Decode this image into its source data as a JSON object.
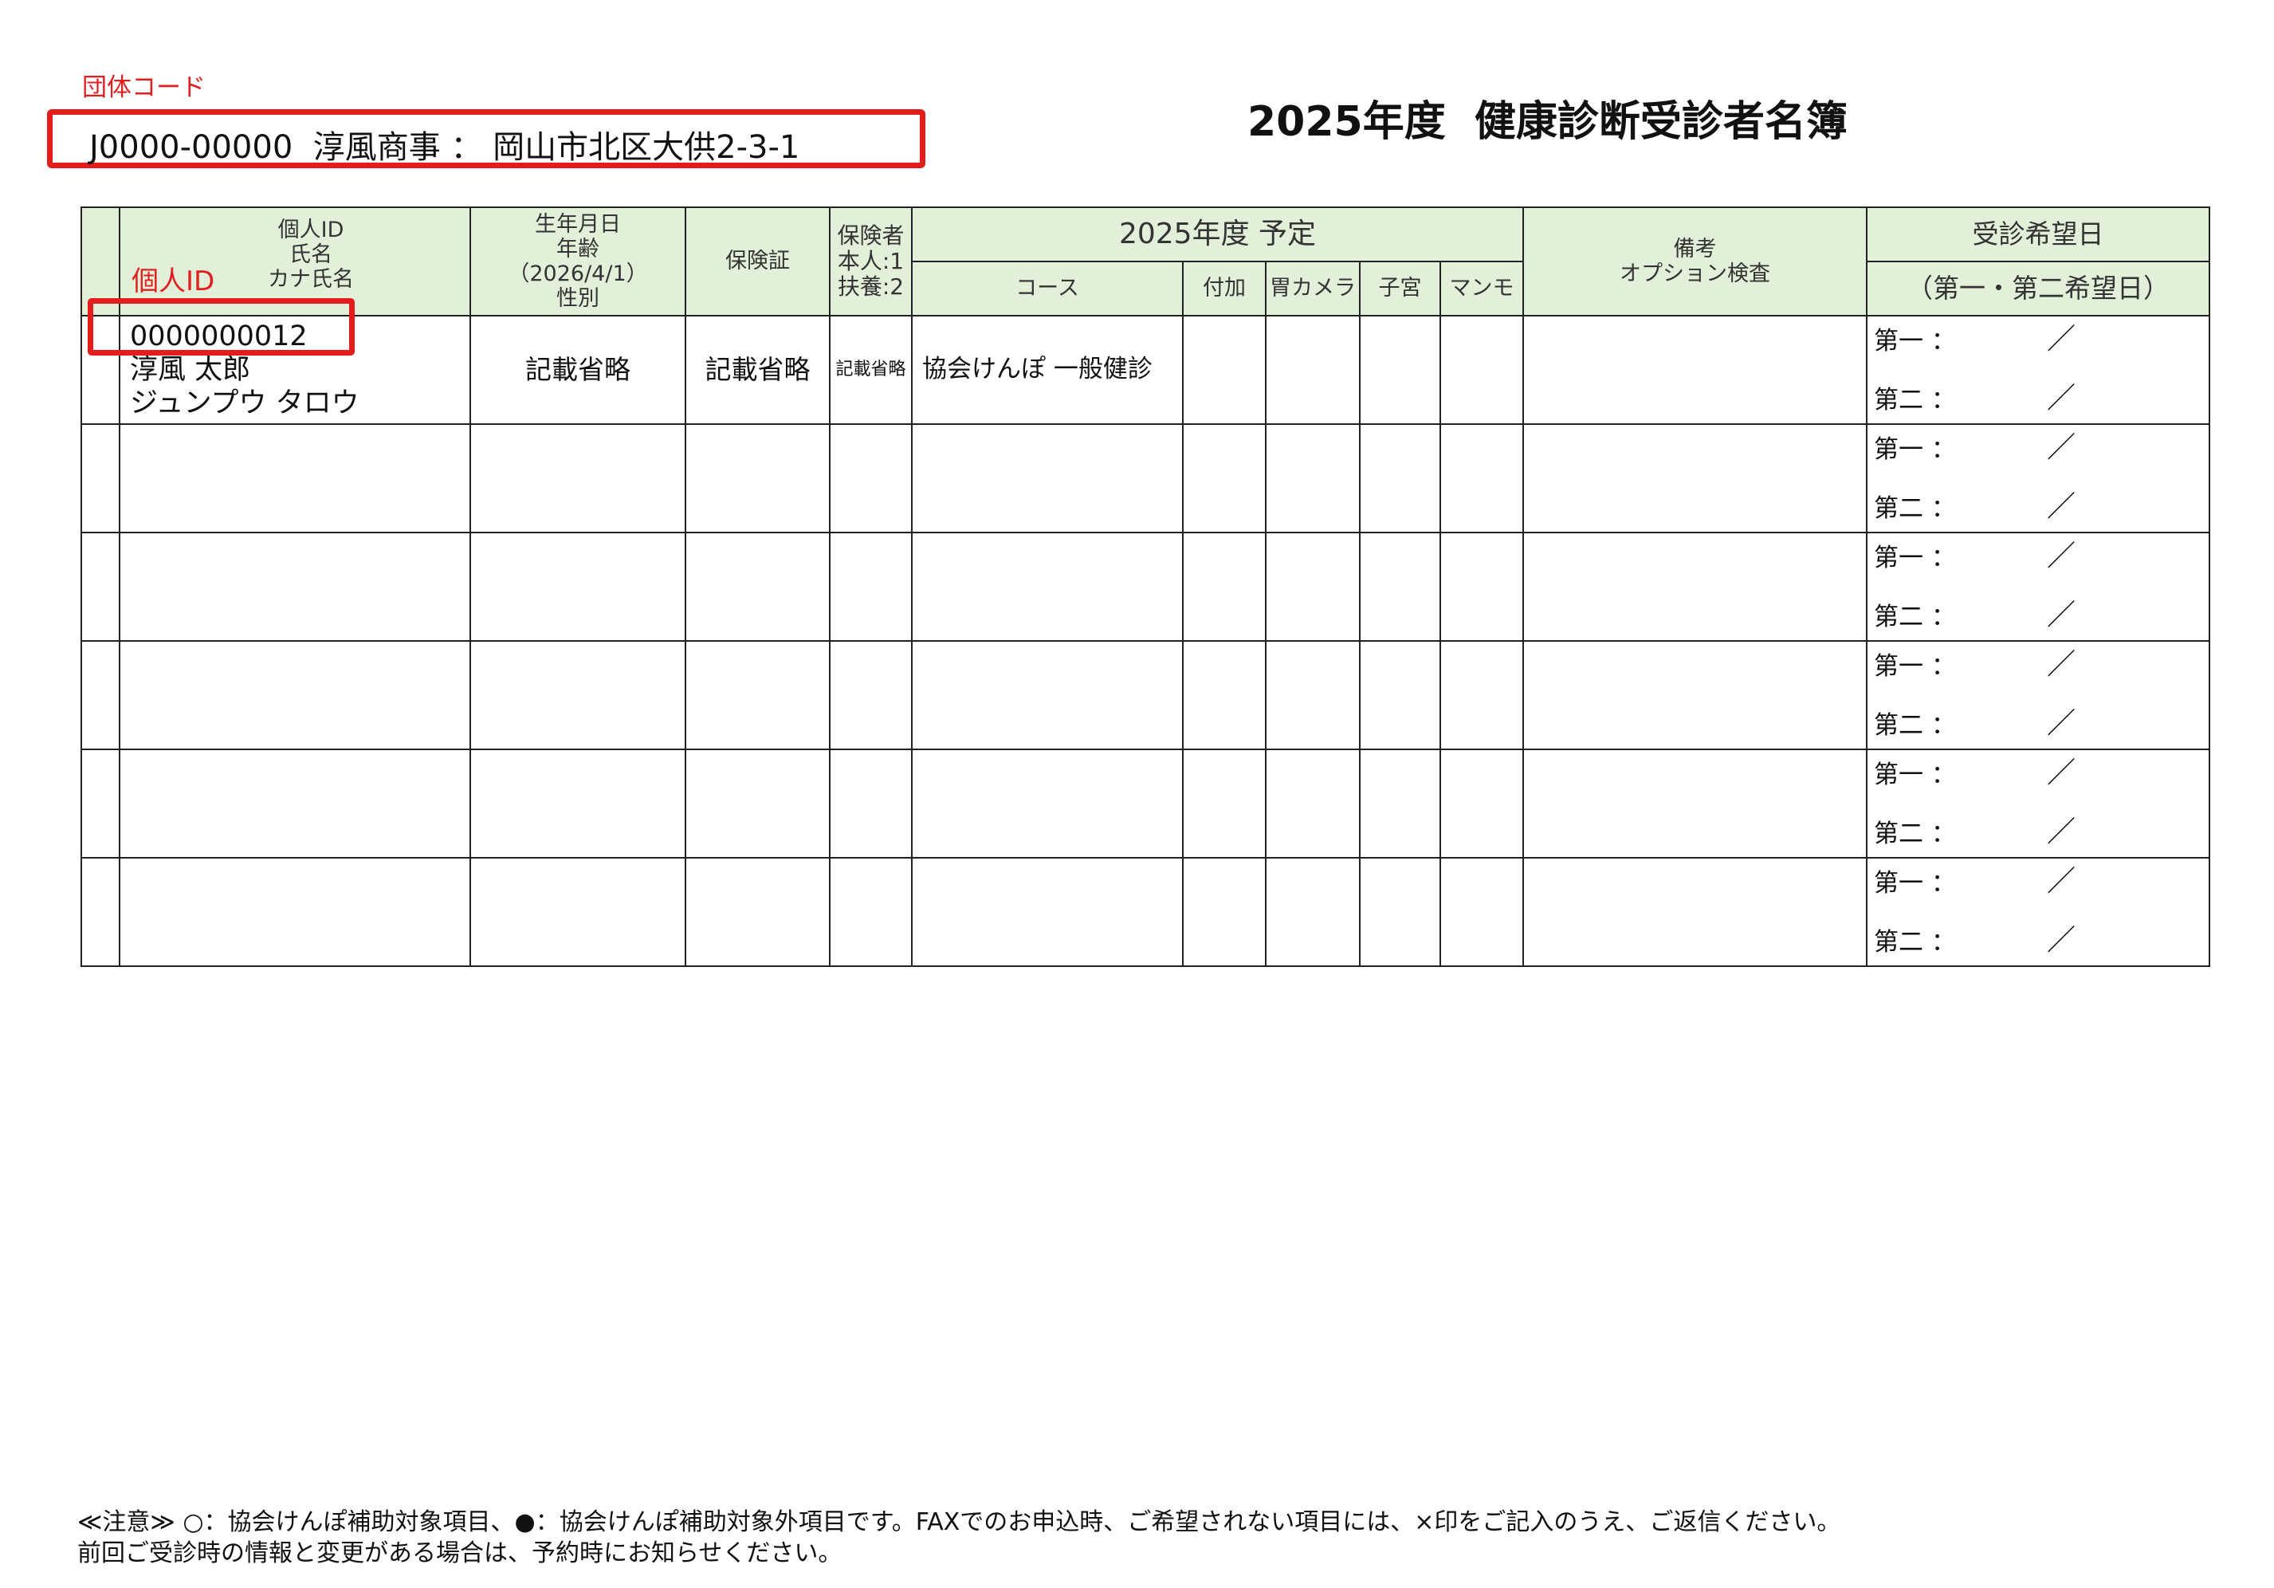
{
  "header": {
    "group_code_label": "団体コード",
    "group_info": "J0000-00000  淳風商事 ： 岡山市北区大供2-3-1",
    "title": "2025年度  健康診断受診者名簿"
  },
  "table": {
    "headers": {
      "person": [
        "個人ID",
        "氏名",
        "カナ氏名"
      ],
      "person_id_highlight": "個人ID",
      "birth": [
        "生年月日",
        "年齢",
        "（2026/4/1）",
        "性別"
      ],
      "insurance_card": "保険証",
      "insured": [
        "保険者",
        "本人:1",
        "扶養:2"
      ],
      "plan_group": "2025年度 予定",
      "course": "コース",
      "additional": "付加",
      "gastro": "胃カメラ",
      "uterus": "子宮",
      "mammo": "マンモ",
      "remarks": [
        "備考",
        "オプション検査"
      ],
      "preferred": "受診希望日",
      "preferred_sub": "（第一・第二希望日）"
    },
    "date_labels": {
      "first": "第一 ：",
      "second": "第二 ：",
      "slash": "／"
    },
    "rows": [
      {
        "id": "0000000012",
        "name": "淳風  太郎",
        "kana": "ジュンプウ  タロウ",
        "birth": "記載省略",
        "card": "記載省略",
        "insured": "記載省略",
        "course": "協会けんぽ  一般健診"
      },
      {
        "id": "",
        "name": "",
        "kana": "",
        "birth": "",
        "card": "",
        "insured": "",
        "course": ""
      },
      {
        "id": "",
        "name": "",
        "kana": "",
        "birth": "",
        "card": "",
        "insured": "",
        "course": ""
      },
      {
        "id": "",
        "name": "",
        "kana": "",
        "birth": "",
        "card": "",
        "insured": "",
        "course": ""
      },
      {
        "id": "",
        "name": "",
        "kana": "",
        "birth": "",
        "card": "",
        "insured": "",
        "course": ""
      },
      {
        "id": "",
        "name": "",
        "kana": "",
        "birth": "",
        "card": "",
        "insured": "",
        "course": ""
      }
    ]
  },
  "footer": {
    "line1": "≪注意≫ ○：協会けんぽ補助対象項目、●：協会けんぽ補助対象外項目です。FAXでのお申込時、ご希望されない項目には、×印をご記入のうえ、ご返信ください。",
    "line2": "前回ご受診時の情報と変更がある場合は、予約時にお知らせください。"
  },
  "colors": {
    "highlight_red": "#e31c1c",
    "header_bg": "#e2efd9"
  }
}
